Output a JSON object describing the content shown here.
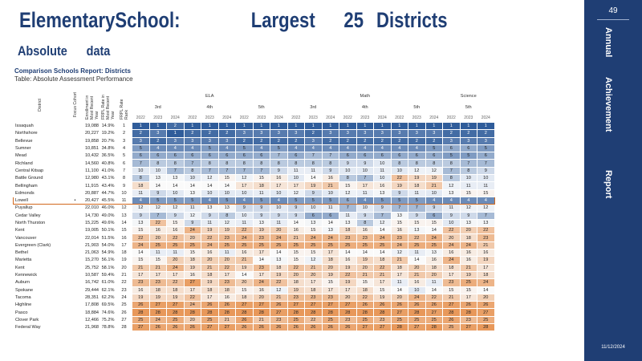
{
  "header": {
    "title_parts": [
      "ElementarySchool:",
      "Largest",
      "25",
      "Districts"
    ],
    "subtitle_parts": [
      "Absolute",
      "data"
    ],
    "report_name": "Comparison Schools Report: Districts",
    "table_name": "Table: Absolute Assessment Performance"
  },
  "sidebar": {
    "page_number": "49",
    "title_words": [
      "Annual",
      "Achievement",
      "Report"
    ],
    "date": "11/12/2024"
  },
  "table": {
    "fixed_headers": [
      "District",
      "Focus Cohort",
      "Enrollment in Most Recent Year",
      "FRPL Rate in Most Recent Year",
      "FRPL Rate Rank"
    ],
    "subject_groups": [
      {
        "label": "ELA",
        "span": 12
      },
      {
        "label": "Math",
        "span": 12
      },
      {
        "label": "Science",
        "span": 3
      }
    ],
    "grade_groups": [
      {
        "label": "3rd",
        "span": 3
      },
      {
        "label": "4th",
        "span": 3
      },
      {
        "label": "5th",
        "span": 3
      },
      {
        "label": "3rd",
        "span": 3
      },
      {
        "label": "4th",
        "span": 3
      },
      {
        "label": "5th",
        "span": 3
      },
      {
        "label": "5th",
        "span": 3
      }
    ],
    "years": [
      "2022",
      "2023",
      "2024",
      "2022",
      "2023",
      "2024",
      "2022",
      "2023",
      "2024",
      "2022",
      "2023",
      "2024",
      "2022",
      "2023",
      "2024",
      "2022",
      "2023",
      "2024",
      "2022",
      "2023",
      "2024"
    ],
    "rows": [
      {
        "district": "Issaquah",
        "focus": "",
        "enroll": "19,088",
        "frpl": "14.9%",
        "rank": "1",
        "values": [
          1,
          1,
          2,
          1,
          1,
          1,
          1,
          1,
          1,
          1,
          1,
          1,
          1,
          1,
          1,
          1,
          1,
          1,
          1,
          1,
          1
        ]
      },
      {
        "district": "Northshore",
        "focus": "",
        "enroll": "20,227",
        "frpl": "19.2%",
        "rank": "2",
        "values": [
          2,
          3,
          1,
          2,
          2,
          2,
          3,
          3,
          3,
          3,
          2,
          3,
          3,
          3,
          3,
          3,
          3,
          3,
          2,
          2,
          2
        ]
      },
      {
        "district": "Bellevue",
        "focus": "",
        "enroll": "19,858",
        "frpl": "20.7%",
        "rank": "3",
        "values": [
          3,
          2,
          3,
          3,
          3,
          3,
          2,
          2,
          2,
          2,
          3,
          2,
          2,
          2,
          2,
          2,
          2,
          2,
          3,
          3,
          3
        ]
      },
      {
        "district": "Sumner",
        "focus": "",
        "enroll": "10,851",
        "frpl": "34.8%",
        "rank": "4",
        "values": [
          5,
          4,
          4,
          4,
          5,
          4,
          5,
          4,
          5,
          4,
          4,
          4,
          4,
          4,
          4,
          4,
          4,
          5,
          6,
          6,
          5
        ]
      },
      {
        "district": "Mead",
        "focus": "",
        "enroll": "10,432",
        "frpl": "36.5%",
        "rank": "5",
        "values": [
          6,
          6,
          6,
          6,
          6,
          6,
          6,
          6,
          7,
          6,
          7,
          7,
          6,
          6,
          6,
          6,
          6,
          6,
          5,
          5,
          6
        ]
      },
      {
        "district": "Richland",
        "focus": "",
        "enroll": "14,560",
        "frpl": "40.8%",
        "rank": "6",
        "values": [
          7,
          8,
          8,
          7,
          8,
          8,
          8,
          8,
          8,
          8,
          8,
          8,
          9,
          9,
          10,
          8,
          8,
          8,
          8,
          7,
          7
        ]
      },
      {
        "district": "Central Kitsap",
        "focus": "",
        "enroll": "11,100",
        "frpl": "41.0%",
        "rank": "7",
        "values": [
          10,
          10,
          7,
          8,
          7,
          7,
          7,
          7,
          9,
          11,
          11,
          9,
          10,
          10,
          11,
          10,
          12,
          12,
          7,
          8,
          9
        ]
      },
      {
        "district": "Battle Ground",
        "focus": "",
        "enroll": "12,980",
        "frpl": "43.1%",
        "rank": "8",
        "values": [
          8,
          13,
          13,
          10,
          12,
          15,
          12,
          15,
          16,
          10,
          14,
          16,
          8,
          7,
          10,
          22,
          19,
          19,
          8,
          10,
          10
        ]
      },
      {
        "district": "Bellingham",
        "focus": "",
        "enroll": "11,915",
        "frpl": "43.4%",
        "rank": "9",
        "values": [
          18,
          14,
          14,
          14,
          14,
          14,
          17,
          18,
          17,
          17,
          19,
          21,
          15,
          17,
          16,
          19,
          18,
          21,
          12,
          11,
          11
        ]
      },
      {
        "district": "Edmonds",
        "focus": "",
        "enroll": "20,887",
        "frpl": "44.7%",
        "rank": "10",
        "values": [
          11,
          9,
          10,
          13,
          10,
          10,
          10,
          11,
          10,
          12,
          9,
          10,
          12,
          11,
          13,
          9,
          11,
          10,
          13,
          15,
          15
        ]
      },
      {
        "district": "Lowell",
        "focus": "•",
        "enroll": "20,427",
        "frpl": "45.5%",
        "rank": "11",
        "highlight": true,
        "values": [
          4,
          5,
          5,
          5,
          4,
          5,
          4,
          5,
          4,
          5,
          5,
          5,
          6,
          4,
          5,
          5,
          5,
          4,
          4,
          4,
          4
        ]
      },
      {
        "district": "Puyallup",
        "focus": "",
        "enroll": "22,010",
        "frpl": "46.0%",
        "rank": "12",
        "values": [
          12,
          12,
          12,
          11,
          13,
          13,
          9,
          9,
          10,
          9,
          10,
          11,
          7,
          10,
          9,
          7,
          7,
          9,
          11,
          12,
          12
        ]
      },
      {
        "district": "Cedar Valley",
        "focus": "",
        "enroll": "14,730",
        "frpl": "49.0%",
        "rank": "13",
        "values": [
          9,
          7,
          9,
          12,
          9,
          8,
          10,
          9,
          9,
          9,
          6,
          6,
          11,
          9,
          7,
          13,
          9,
          6,
          9,
          9,
          7
        ]
      },
      {
        "district": "North Thurston",
        "focus": "",
        "enroll": "15,225",
        "frpl": "49.6%",
        "rank": "14",
        "values": [
          13,
          22,
          15,
          9,
          11,
          12,
          11,
          13,
          11,
          14,
          13,
          14,
          13,
          8,
          12,
          15,
          15,
          15,
          10,
          13,
          13
        ]
      },
      {
        "district": "Kent",
        "focus": "",
        "enroll": "19,005",
        "frpl": "50.1%",
        "rank": "15",
        "values": [
          15,
          16,
          16,
          24,
          19,
          19,
          22,
          19,
          20,
          16,
          15,
          13,
          18,
          16,
          14,
          16,
          13,
          14,
          22,
          20,
          22
        ]
      },
      {
        "district": "Vancouver",
        "focus": "",
        "enroll": "22,014",
        "frpl": "51.5%",
        "rank": "16",
        "values": [
          22,
          20,
          22,
          20,
          22,
          23,
          24,
          23,
          24,
          21,
          24,
          24,
          23,
          23,
          24,
          23,
          22,
          24,
          20,
          18,
          23
        ]
      },
      {
        "district": "Evergreen (Clark)",
        "focus": "",
        "enroll": "21,903",
        "frpl": "54.0%",
        "rank": "17",
        "values": [
          24,
          25,
          25,
          25,
          24,
          25,
          25,
          25,
          25,
          25,
          25,
          25,
          25,
          25,
          25,
          24,
          25,
          25,
          24,
          24,
          21
        ]
      },
      {
        "district": "Bethel",
        "focus": "",
        "enroll": "21,063",
        "frpl": "54.9%",
        "rank": "18",
        "values": [
          14,
          11,
          11,
          15,
          16,
          11,
          16,
          17,
          14,
          15,
          15,
          17,
          14,
          14,
          14,
          12,
          11,
          13,
          16,
          16,
          16
        ]
      },
      {
        "district": "Marietta",
        "focus": "",
        "enroll": "15,270",
        "frpl": "56.1%",
        "rank": "19",
        "values": [
          15,
          15,
          20,
          18,
          20,
          20,
          21,
          14,
          13,
          15,
          12,
          18,
          16,
          19,
          18,
          21,
          14,
          16,
          24,
          16,
          19
        ]
      },
      {
        "district": "Kent",
        "focus": "",
        "enroll": "25,752",
        "frpl": "58.1%",
        "rank": "20",
        "values": [
          21,
          21,
          24,
          19,
          21,
          22,
          19,
          23,
          18,
          22,
          21,
          20,
          19,
          20,
          22,
          18,
          20,
          18,
          18,
          21,
          17
        ]
      },
      {
        "district": "Kennewick",
        "focus": "",
        "enroll": "10,587",
        "frpl": "59.4%",
        "rank": "21",
        "values": [
          17,
          17,
          17,
          16,
          18,
          17,
          14,
          17,
          19,
          20,
          20,
          19,
          22,
          21,
          21,
          17,
          21,
          20,
          17,
          19,
          18
        ]
      },
      {
        "district": "Auburn",
        "focus": "",
        "enroll": "16,742",
        "frpl": "61.0%",
        "rank": "22",
        "values": [
          23,
          23,
          22,
          27,
          19,
          23,
          20,
          24,
          22,
          18,
          17,
          15,
          19,
          15,
          17,
          11,
          16,
          11,
          23,
          25,
          24
        ]
      },
      {
        "district": "Spokane",
        "focus": "",
        "enroll": "29,444",
        "frpl": "62.1%",
        "rank": "23",
        "values": [
          16,
          18,
          18,
          17,
          18,
          18,
          15,
          16,
          12,
          19,
          18,
          17,
          17,
          18,
          15,
          14,
          10,
          14,
          15,
          15,
          14
        ]
      },
      {
        "district": "Tacoma",
        "focus": "",
        "enroll": "28,351",
        "frpl": "62.2%",
        "rank": "24",
        "values": [
          19,
          19,
          19,
          22,
          17,
          16,
          18,
          20,
          21,
          23,
          23,
          23,
          20,
          22,
          19,
          20,
          24,
          22,
          21,
          17,
          20
        ]
      },
      {
        "district": "Highline",
        "focus": "",
        "enroll": "17,808",
        "frpl": "69.5%",
        "rank": "25",
        "values": [
          26,
          27,
          27,
          24,
          26,
          26,
          27,
          27,
          26,
          27,
          27,
          27,
          27,
          26,
          26,
          26,
          26,
          26,
          27,
          26,
          26
        ]
      },
      {
        "district": "Pasco",
        "focus": "",
        "enroll": "18,884",
        "frpl": "74.6%",
        "rank": "26",
        "values": [
          28,
          28,
          28,
          28,
          28,
          28,
          28,
          28,
          27,
          28,
          28,
          28,
          28,
          28,
          28,
          27,
          28,
          27,
          28,
          28,
          27
        ]
      },
      {
        "district": "Clover Park",
        "focus": "",
        "enroll": "12,466",
        "frpl": "75.2%",
        "rank": "27",
        "values": [
          25,
          24,
          25,
          20,
          25,
          21,
          26,
          21,
          23,
          25,
          22,
          25,
          23,
          25,
          23,
          25,
          25,
          25,
          26,
          23,
          25
        ]
      },
      {
        "district": "Federal Way",
        "focus": "",
        "enroll": "21,968",
        "frpl": "78.8%",
        "rank": "28",
        "values": [
          27,
          26,
          26,
          26,
          27,
          27,
          26,
          26,
          26,
          26,
          26,
          26,
          26,
          27,
          27,
          28,
          27,
          28,
          25,
          27,
          28
        ]
      }
    ]
  }
}
